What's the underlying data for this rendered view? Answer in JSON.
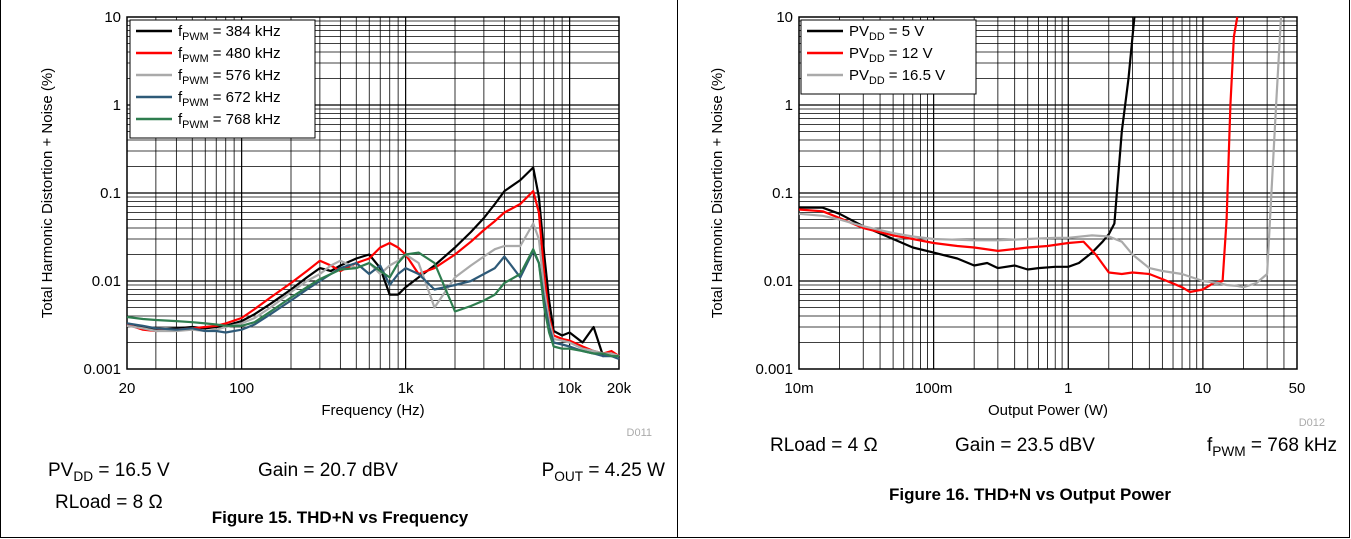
{
  "chart_data": [
    {
      "type": "line",
      "title": "Figure 15. THD+N vs Frequency",
      "xlabel": "Frequency (Hz)",
      "ylabel": "Total Harmonic Distortion + Noise (%)",
      "xscale": "log",
      "yscale": "log",
      "xlim": [
        20,
        20000
      ],
      "ylim": [
        0.001,
        10
      ],
      "grid": true,
      "legend_position": "top-left",
      "code": "D011",
      "x_tick_values": [
        20,
        100,
        1000,
        10000,
        20000
      ],
      "x_tick_labels": [
        "20",
        "100",
        "1k",
        "10k",
        "20k"
      ],
      "y_tick_values": [
        0.001,
        0.01,
        0.1,
        1,
        10
      ],
      "y_tick_labels": [
        "0.001",
        "0.01",
        "0.1",
        "1",
        "10"
      ],
      "conditions": [
        {
          "main": "PV",
          "sub": "DD",
          "rest": " = 16.5 V"
        },
        {
          "main": "Gain = 20.7 dBV",
          "sub": "",
          "rest": ""
        },
        {
          "main": "P",
          "sub": "OUT",
          "rest": " = 4.25 W"
        },
        {
          "main": "RLoad = 8 Ω",
          "sub": "",
          "rest": ""
        }
      ],
      "series": [
        {
          "name_main": "f",
          "name_sub": "PWM",
          "name_rest": " = 384 kHz",
          "color": "#000000",
          "x": [
            20,
            25,
            30,
            40,
            50,
            60,
            70,
            80,
            100,
            120,
            150,
            200,
            250,
            300,
            350,
            400,
            500,
            600,
            700,
            800,
            900,
            1000,
            1200,
            1500,
            2000,
            2500,
            3000,
            3500,
            4000,
            5000,
            6000,
            6500,
            7000,
            7500,
            8000,
            9000,
            10000,
            12000,
            14000,
            16000,
            18000,
            20000
          ],
          "y": [
            0.0033,
            0.003,
            0.0028,
            0.0029,
            0.003,
            0.0029,
            0.003,
            0.0031,
            0.0035,
            0.0042,
            0.0055,
            0.008,
            0.011,
            0.014,
            0.013,
            0.015,
            0.018,
            0.02,
            0.014,
            0.007,
            0.007,
            0.0085,
            0.011,
            0.015,
            0.024,
            0.036,
            0.052,
            0.075,
            0.105,
            0.14,
            0.195,
            0.09,
            0.02,
            0.006,
            0.0027,
            0.0024,
            0.0026,
            0.002,
            0.003,
            0.0014,
            0.0015,
            0.0014
          ]
        },
        {
          "name_main": "f",
          "name_sub": "PWM",
          "name_rest": " = 480 kHz",
          "color": "#ff0000",
          "x": [
            20,
            25,
            30,
            40,
            50,
            60,
            70,
            80,
            100,
            120,
            150,
            200,
            250,
            300,
            350,
            400,
            500,
            600,
            700,
            800,
            900,
            1000,
            1200,
            1500,
            2000,
            2500,
            3000,
            3500,
            4000,
            5000,
            6000,
            6500,
            7000,
            7500,
            8000,
            9000,
            10000,
            12000,
            14000,
            16000,
            18000,
            20000
          ],
          "y": [
            0.0032,
            0.0028,
            0.0027,
            0.0028,
            0.0029,
            0.003,
            0.0031,
            0.0033,
            0.0038,
            0.0048,
            0.0065,
            0.0095,
            0.013,
            0.017,
            0.015,
            0.013,
            0.016,
            0.018,
            0.024,
            0.027,
            0.024,
            0.02,
            0.012,
            0.014,
            0.02,
            0.028,
            0.038,
            0.048,
            0.06,
            0.075,
            0.105,
            0.06,
            0.012,
            0.004,
            0.0024,
            0.0022,
            0.0021,
            0.0018,
            0.0016,
            0.0015,
            0.0016,
            0.0014
          ]
        },
        {
          "name_main": "f",
          "name_sub": "PWM",
          "name_rest": " = 576 kHz",
          "color": "#aaaaaa",
          "x": [
            20,
            25,
            30,
            40,
            50,
            60,
            70,
            80,
            100,
            120,
            150,
            200,
            250,
            300,
            350,
            400,
            500,
            600,
            700,
            800,
            900,
            1000,
            1200,
            1500,
            2000,
            2500,
            3000,
            3500,
            4000,
            5000,
            6000,
            6500,
            7000,
            7500,
            8000,
            9000,
            10000,
            12000,
            14000,
            16000,
            18000,
            20000
          ],
          "y": [
            0.0031,
            0.0029,
            0.0027,
            0.0027,
            0.0028,
            0.0027,
            0.0028,
            0.003,
            0.0033,
            0.0038,
            0.005,
            0.0075,
            0.01,
            0.012,
            0.015,
            0.017,
            0.014,
            0.016,
            0.012,
            0.015,
            0.017,
            0.02,
            0.016,
            0.005,
            0.011,
            0.015,
            0.019,
            0.023,
            0.025,
            0.025,
            0.045,
            0.03,
            0.008,
            0.0035,
            0.0022,
            0.0021,
            0.002,
            0.0017,
            0.0016,
            0.0015,
            0.0015,
            0.0014
          ]
        },
        {
          "name_main": "f",
          "name_sub": "PWM",
          "name_rest": " = 672 kHz",
          "color": "#2e5a78",
          "x": [
            20,
            25,
            30,
            40,
            50,
            60,
            70,
            80,
            100,
            120,
            150,
            200,
            250,
            300,
            350,
            400,
            500,
            600,
            700,
            800,
            900,
            1000,
            1200,
            1500,
            2000,
            2500,
            3000,
            3500,
            4000,
            5000,
            6000,
            6500,
            7000,
            7500,
            8000,
            9000,
            10000,
            12000,
            14000,
            16000,
            18000,
            20000
          ],
          "y": [
            0.0033,
            0.0031,
            0.0029,
            0.0028,
            0.0029,
            0.0027,
            0.0027,
            0.0026,
            0.0028,
            0.0032,
            0.0042,
            0.006,
            0.008,
            0.01,
            0.012,
            0.014,
            0.016,
            0.012,
            0.015,
            0.009,
            0.012,
            0.014,
            0.012,
            0.008,
            0.009,
            0.01,
            0.012,
            0.014,
            0.019,
            0.011,
            0.022,
            0.016,
            0.006,
            0.003,
            0.002,
            0.0019,
            0.0018,
            0.0016,
            0.0015,
            0.0014,
            0.0014,
            0.0013
          ]
        },
        {
          "name_main": "f",
          "name_sub": "PWM",
          "name_rest": " = 768 kHz",
          "color": "#2e7d4f",
          "x": [
            20,
            25,
            30,
            40,
            50,
            60,
            70,
            80,
            100,
            120,
            150,
            200,
            250,
            300,
            350,
            400,
            500,
            600,
            700,
            800,
            900,
            1000,
            1200,
            1500,
            2000,
            2500,
            3000,
            3500,
            4000,
            5000,
            6000,
            6500,
            7000,
            7500,
            8000,
            9000,
            10000,
            12000,
            14000,
            16000,
            18000,
            20000
          ],
          "y": [
            0.0039,
            0.0037,
            0.0036,
            0.0035,
            0.0034,
            0.0033,
            0.0032,
            0.0031,
            0.0031,
            0.0034,
            0.0045,
            0.0065,
            0.0085,
            0.0105,
            0.012,
            0.0135,
            0.014,
            0.016,
            0.013,
            0.011,
            0.016,
            0.02,
            0.021,
            0.016,
            0.0045,
            0.0052,
            0.006,
            0.007,
            0.0095,
            0.012,
            0.023,
            0.016,
            0.005,
            0.0026,
            0.0018,
            0.0017,
            0.0017,
            0.0016,
            0.0015,
            0.0015,
            0.0014,
            0.0014
          ]
        }
      ]
    },
    {
      "type": "line",
      "title": "Figure 16. THD+N vs Output Power",
      "xlabel": "Output Power (W)",
      "ylabel": "Total Harmonic Distortion + Noise (%)",
      "xscale": "log",
      "yscale": "log",
      "xlim": [
        0.01,
        50
      ],
      "ylim": [
        0.001,
        10
      ],
      "grid": true,
      "legend_position": "top-left",
      "code": "D012",
      "x_tick_values": [
        0.01,
        0.1,
        1,
        10,
        50
      ],
      "x_tick_labels": [
        "10m",
        "100m",
        "1",
        "10",
        "50"
      ],
      "y_tick_values": [
        0.001,
        0.01,
        0.1,
        1,
        10
      ],
      "y_tick_labels": [
        "0.001",
        "0.01",
        "0.1",
        "1",
        "10"
      ],
      "conditions": [
        {
          "main": "RLoad = 4 Ω",
          "sub": "",
          "rest": ""
        },
        {
          "main": "Gain = 23.5 dBV",
          "sub": "",
          "rest": ""
        },
        {
          "main": "f",
          "sub": "PWM",
          "rest": " = 768 kHz"
        }
      ],
      "series": [
        {
          "name_main": "PV",
          "name_sub": "DD",
          "name_rest": " = 5 V",
          "color": "#000000",
          "x": [
            0.01,
            0.015,
            0.02,
            0.03,
            0.05,
            0.07,
            0.1,
            0.15,
            0.2,
            0.25,
            0.3,
            0.4,
            0.5,
            0.6,
            0.8,
            1.0,
            1.2,
            1.5,
            1.8,
            2.0,
            2.2,
            2.5,
            2.8,
            3.1
          ],
          "y": [
            0.068,
            0.068,
            0.058,
            0.042,
            0.03,
            0.024,
            0.021,
            0.018,
            0.015,
            0.016,
            0.014,
            0.015,
            0.0135,
            0.014,
            0.0145,
            0.0145,
            0.016,
            0.021,
            0.028,
            0.034,
            0.045,
            0.5,
            2,
            10
          ]
        },
        {
          "name_main": "PV",
          "name_sub": "DD",
          "name_rest": " = 12 V",
          "color": "#ff0000",
          "x": [
            0.01,
            0.015,
            0.02,
            0.03,
            0.05,
            0.07,
            0.1,
            0.15,
            0.2,
            0.3,
            0.5,
            0.7,
            1.0,
            1.3,
            1.6,
            2.0,
            2.5,
            3,
            4,
            5,
            7,
            8,
            10,
            12,
            14,
            15,
            16,
            17,
            18
          ],
          "y": [
            0.065,
            0.062,
            0.052,
            0.04,
            0.033,
            0.03,
            0.027,
            0.025,
            0.024,
            0.022,
            0.024,
            0.025,
            0.027,
            0.028,
            0.02,
            0.0125,
            0.012,
            0.0125,
            0.012,
            0.0105,
            0.0085,
            0.0075,
            0.008,
            0.0095,
            0.01,
            0.05,
            1,
            6,
            10
          ]
        },
        {
          "name_main": "PV",
          "name_sub": "DD",
          "name_rest": " = 16.5 V",
          "color": "#aaaaaa",
          "x": [
            0.01,
            0.015,
            0.02,
            0.03,
            0.05,
            0.07,
            0.1,
            0.2,
            0.3,
            0.5,
            0.8,
            1.0,
            1.5,
            2.0,
            2.5,
            3,
            4,
            5,
            7,
            10,
            13,
            15,
            18,
            20,
            25,
            30,
            35,
            38
          ],
          "y": [
            0.058,
            0.055,
            0.05,
            0.042,
            0.035,
            0.032,
            0.03,
            0.029,
            0.029,
            0.03,
            0.031,
            0.031,
            0.033,
            0.032,
            0.028,
            0.02,
            0.014,
            0.013,
            0.012,
            0.01,
            0.0095,
            0.009,
            0.0088,
            0.0085,
            0.0095,
            0.012,
            1,
            10
          ]
        }
      ]
    }
  ]
}
